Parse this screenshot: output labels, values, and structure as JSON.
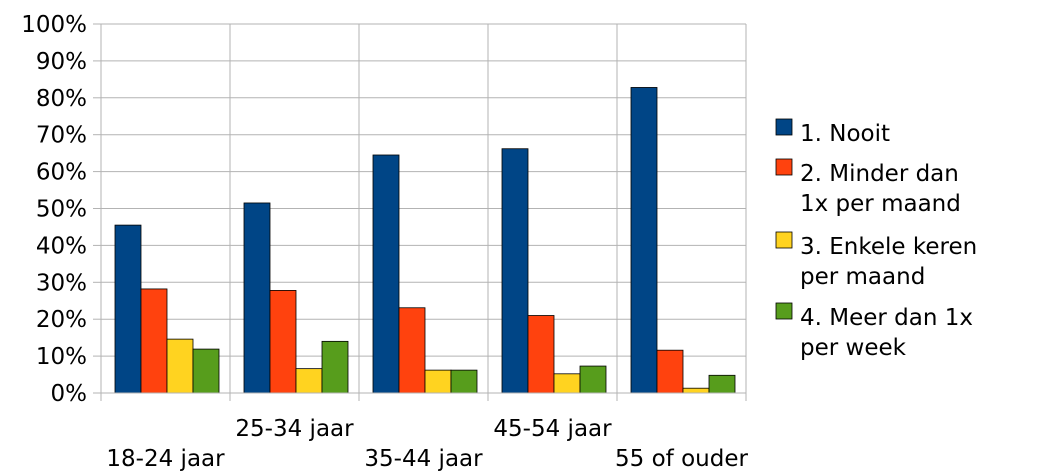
{
  "chart_data": {
    "type": "bar",
    "categories": [
      "18-24 jaar",
      "25-34 jaar",
      "35-44 jaar",
      "45-54 jaar",
      "55 of ouder"
    ],
    "series": [
      {
        "name": "1. Nooit",
        "legend_lines": [
          "1. Nooit"
        ],
        "color": "#004586",
        "values": [
          45.5,
          51.5,
          64.5,
          66.2,
          82.8
        ]
      },
      {
        "name": "2. Minder dan 1x per maand",
        "legend_lines": [
          "2. Minder dan",
          "1x per maand"
        ],
        "color": "#FF420E",
        "values": [
          28.2,
          27.8,
          23.1,
          21.0,
          11.6
        ]
      },
      {
        "name": "3. Enkele keren per maand",
        "legend_lines": [
          "3. Enkele keren",
          "per maand"
        ],
        "color": "#FFD320",
        "values": [
          14.6,
          6.6,
          6.2,
          5.2,
          1.3
        ]
      },
      {
        "name": "4. Meer dan 1x per week",
        "legend_lines": [
          "4. Meer dan 1x",
          "per week"
        ],
        "color": "#579D1C",
        "values": [
          11.9,
          14.0,
          6.2,
          7.3,
          4.8
        ]
      }
    ],
    "yticks": [
      "0%",
      "10%",
      "20%",
      "30%",
      "40%",
      "50%",
      "60%",
      "70%",
      "80%",
      "90%",
      "100%"
    ],
    "ylim": [
      0,
      100
    ],
    "grid": true,
    "legend": "right",
    "title": "",
    "xlabel": "",
    "ylabel": ""
  }
}
